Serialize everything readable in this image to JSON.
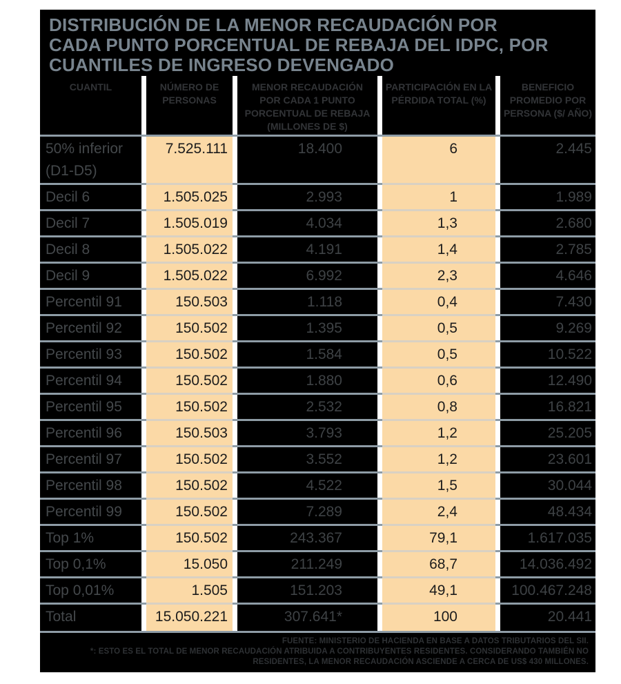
{
  "colors": {
    "table_bg": "#000000",
    "peach": "#fbd9a6",
    "title_text": "#78848e",
    "header_text": "#323437",
    "label_text": "#44484b",
    "value_text": "#3e4245",
    "peach_text": "#1c1c1c",
    "separator": "#8e9ca6",
    "separator_peach": "#d9d1c3",
    "footer_text": "#2e3134"
  },
  "title_lines": [
    "DISTRIBUCIÓN DE LA MENOR RECAUDACIÓN POR",
    "CADA PUNTO PORCENTUAL DE REBAJA DEL IDPC, POR",
    "CUANTILES DE INGRESO DEVENGADO"
  ],
  "chart_data": {
    "type": "table",
    "title": "DISTRIBUCIÓN DE LA MENOR RECAUDACIÓN POR CADA PUNTO PORCENTUAL DE REBAJA DEL IDPC, POR CUANTILES DE INGRESO DEVENGADO",
    "columns": [
      "CUANTIL",
      "NÚMERO DE PERSONAS",
      "MENOR RECAUDACIÓN POR CADA 1 PUNTO PORCENTUAL DE REBAJA (MILLONES DE $)",
      "PARTICIPACIÓN EN LA PÉRDIDA TOTAL (%)",
      "BENEFICIO PROMEDIO POR PERSONA ($/ AÑO)"
    ],
    "rows": [
      [
        "50% inferior (D1-D5)",
        "7.525.111",
        "18.400",
        "6",
        "2.445"
      ],
      [
        "Decil 6",
        "1.505.025",
        "2.993",
        "1",
        "1.989"
      ],
      [
        "Decil 7",
        "1.505.019",
        "4.034",
        "1,3",
        "2.680"
      ],
      [
        "Decil 8",
        "1.505.022",
        "4.191",
        "1,4",
        "2.785"
      ],
      [
        "Decil 9",
        "1.505.022",
        "6.992",
        "2,3",
        "4.646"
      ],
      [
        "Percentil 91",
        "150.503",
        "1.118",
        "0,4",
        "7.430"
      ],
      [
        "Percentil 92",
        "150.502",
        "1.395",
        "0,5",
        "9.269"
      ],
      [
        "Percentil 93",
        "150.502",
        "1.584",
        "0,5",
        "10.522"
      ],
      [
        "Percentil 94",
        "150.502",
        "1.880",
        "0,6",
        "12.490"
      ],
      [
        "Percentil 95",
        "150.502",
        "2.532",
        "0,8",
        "16.821"
      ],
      [
        "Percentil 96",
        "150.503",
        "3.793",
        "1,2",
        "25.205"
      ],
      [
        "Percentil 97",
        "150.502",
        "3.552",
        "1,2",
        "23.601"
      ],
      [
        "Percentil 98",
        "150.502",
        "4.522",
        "1,5",
        "30.044"
      ],
      [
        "Percentil 99",
        "150.502",
        "7.289",
        "2,4",
        "48.434"
      ],
      [
        "Top 1%",
        "150.502",
        "243.367",
        "79,1",
        "1.617.035"
      ],
      [
        "Top 0,1%",
        "15.050",
        "211.249",
        "68,7",
        "14.036.492"
      ],
      [
        "Top 0,01%",
        "1.505",
        "151.203",
        "49,1",
        "100.467.248"
      ],
      [
        "Total",
        "15.050.221",
        "307.641*",
        "100",
        "20.441"
      ]
    ]
  },
  "footer": {
    "lines": [
      "FUENTE: MINISTERIO DE HACIENDA EN BASE A DATOS TRIBUTARIOS DEL SII.",
      "*: ESTO ES EL TOTAL DE MENOR RECAUDACIÓN ATRIBUIDA A CONTRIBUYENTES RESIDENTES. CONSIDERANDO TAMBIÉN NO",
      "RESIDENTES, LA MENOR RECAUDACIÓN ASCIENDE A CERCA DE US$ 430 MILLONES."
    ]
  }
}
